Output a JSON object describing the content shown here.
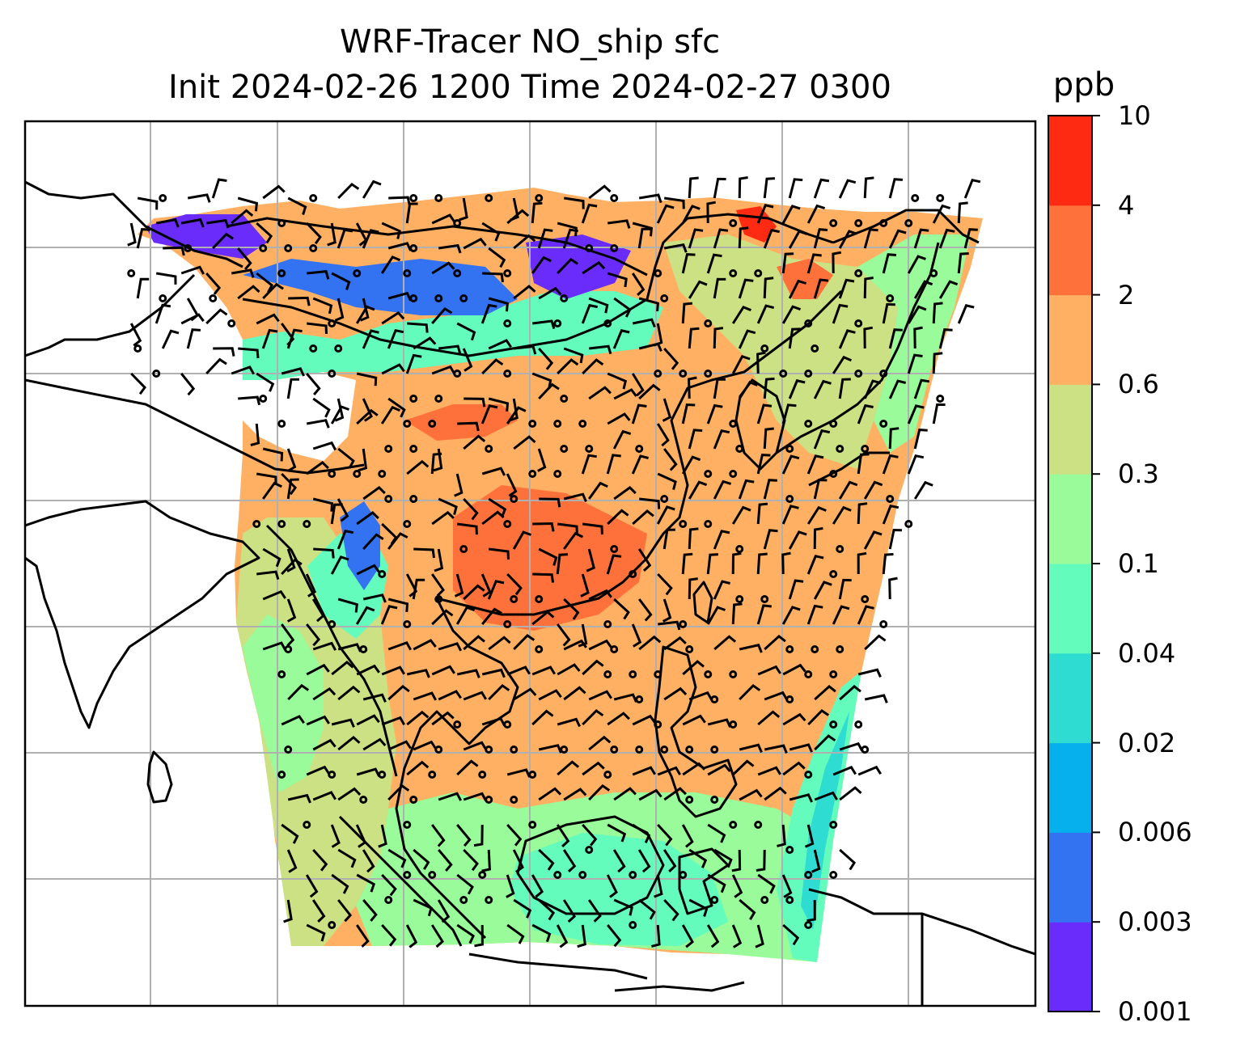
{
  "title": {
    "line1": "WRF-Tracer NO_ship sfc",
    "line2": "Init 2024-02-26 1200 Time 2024-02-27 0300"
  },
  "colorbar": {
    "unit": "ppb",
    "levels": [
      "0.001",
      "0.003",
      "0.006",
      "0.02",
      "0.04",
      "0.1",
      "0.3",
      "0.6",
      "2",
      "4",
      "10"
    ],
    "colors": [
      "#6a2cfa",
      "#3373f2",
      "#06b0ec",
      "#2fdcd2",
      "#63fcbd",
      "#99fb99",
      "#cce184",
      "#ffb062",
      "#ff713a",
      "#ff2a12"
    ]
  },
  "map": {
    "background": "#ffffff",
    "grid_color": "#b0b0b0",
    "coast_color": "#000000"
  }
}
